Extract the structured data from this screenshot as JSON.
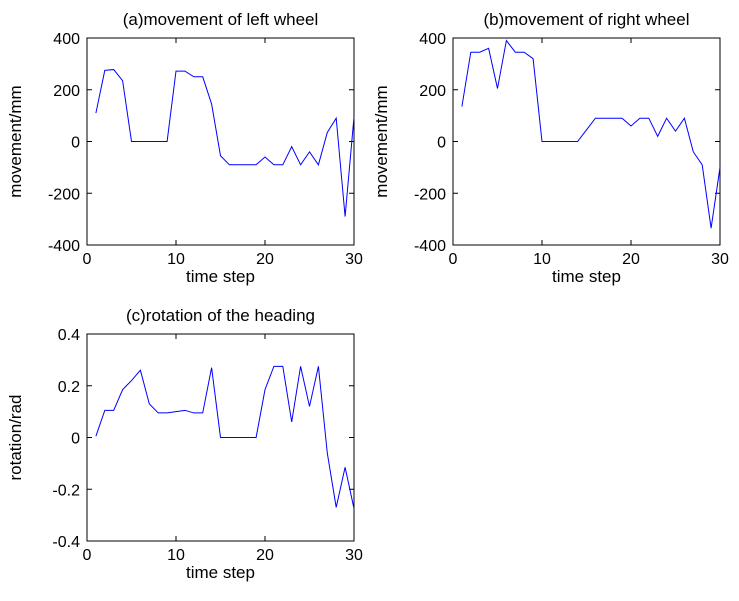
{
  "figure": {
    "background": "#ffffff",
    "line_color": "#0000ff"
  },
  "chart_data": [
    {
      "id": "left",
      "type": "line",
      "title": "(a)movement of left wheel",
      "xlabel": "time step",
      "ylabel": "movement/mm",
      "xlim": [
        0,
        30
      ],
      "ylim": [
        -400,
        400
      ],
      "xticks": [
        0,
        10,
        20,
        30
      ],
      "yticks": [
        -400,
        -200,
        0,
        200,
        400
      ],
      "x": [
        1,
        2,
        3,
        4,
        5,
        6,
        7,
        8,
        9,
        10,
        11,
        12,
        13,
        14,
        15,
        16,
        17,
        18,
        19,
        20,
        21,
        22,
        23,
        24,
        25,
        26,
        27,
        28,
        29,
        30
      ],
      "values": [
        110,
        275,
        278,
        235,
        0,
        0,
        0,
        0,
        0,
        272,
        272,
        250,
        250,
        145,
        -55,
        -90,
        -90,
        -90,
        -90,
        -60,
        -90,
        -90,
        -20,
        -90,
        -40,
        -90,
        35,
        90,
        -290,
        95
      ]
    },
    {
      "id": "right",
      "type": "line",
      "title": "(b)movement of right wheel",
      "xlabel": "time step",
      "ylabel": "movement/mm",
      "xlim": [
        0,
        30
      ],
      "ylim": [
        -400,
        400
      ],
      "xticks": [
        0,
        10,
        20,
        30
      ],
      "yticks": [
        -400,
        -200,
        0,
        200,
        400
      ],
      "x": [
        1,
        2,
        3,
        4,
        5,
        6,
        7,
        8,
        9,
        10,
        11,
        12,
        13,
        14,
        15,
        16,
        17,
        18,
        19,
        20,
        21,
        22,
        23,
        24,
        25,
        26,
        27,
        28,
        29,
        30
      ],
      "values": [
        135,
        345,
        345,
        360,
        205,
        390,
        345,
        345,
        320,
        0,
        0,
        0,
        0,
        0,
        45,
        90,
        90,
        90,
        90,
        60,
        90,
        90,
        20,
        90,
        40,
        90,
        -40,
        -90,
        -335,
        -100
      ]
    },
    {
      "id": "heading",
      "type": "line",
      "title": "(c)rotation of the heading",
      "xlabel": "time step",
      "ylabel": "rotation/rad",
      "xlim": [
        0,
        30
      ],
      "ylim": [
        -0.4,
        0.4
      ],
      "xticks": [
        0,
        10,
        20,
        30
      ],
      "yticks": [
        -0.4,
        -0.2,
        0,
        0.2,
        0.4
      ],
      "x": [
        1,
        2,
        3,
        4,
        5,
        6,
        7,
        8,
        9,
        10,
        11,
        12,
        13,
        14,
        15,
        16,
        17,
        18,
        19,
        20,
        21,
        22,
        23,
        24,
        25,
        26,
        27,
        28,
        29,
        30
      ],
      "values": [
        0.005,
        0.105,
        0.105,
        0.185,
        0.22,
        0.26,
        0.13,
        0.095,
        0.095,
        0.1,
        0.105,
        0.095,
        0.095,
        0.27,
        0,
        0,
        0,
        0,
        0,
        0.185,
        0.275,
        0.275,
        0.06,
        0.275,
        0.12,
        0.275,
        -0.06,
        -0.27,
        -0.115,
        -0.275
      ]
    }
  ]
}
